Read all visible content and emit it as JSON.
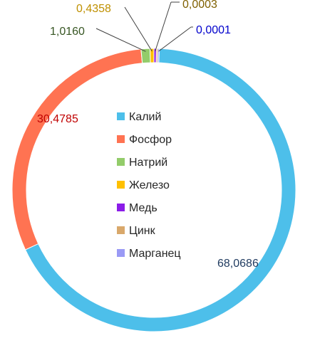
{
  "chart_data": {
    "type": "pie",
    "variant": "donut",
    "title": "",
    "categories": [
      "Калий",
      "Фосфор",
      "Натрий",
      "Железо",
      "Медь",
      "Цинк",
      "Марганец"
    ],
    "values": [
      68.0686,
      30.4785,
      1.016,
      0.4358,
      0.0003,
      0.0008,
      0.0001
    ],
    "value_labels": [
      "68,0686",
      "30,4785",
      "1,0160",
      "0,4358",
      "0,0003",
      "",
      "0,0001"
    ],
    "colors": [
      "#4DBFEA",
      "#FF7352",
      "#93CC6A",
      "#FFC000",
      "#8B1CE8",
      "#D9A86B",
      "#9A9AF5"
    ],
    "label_colors": [
      "#1F3A5F",
      "#C00000",
      "#375623",
      "#BF9000",
      "#7F6000",
      "#7F6000",
      "#0000CC"
    ],
    "legend": {
      "position": "center"
    }
  }
}
